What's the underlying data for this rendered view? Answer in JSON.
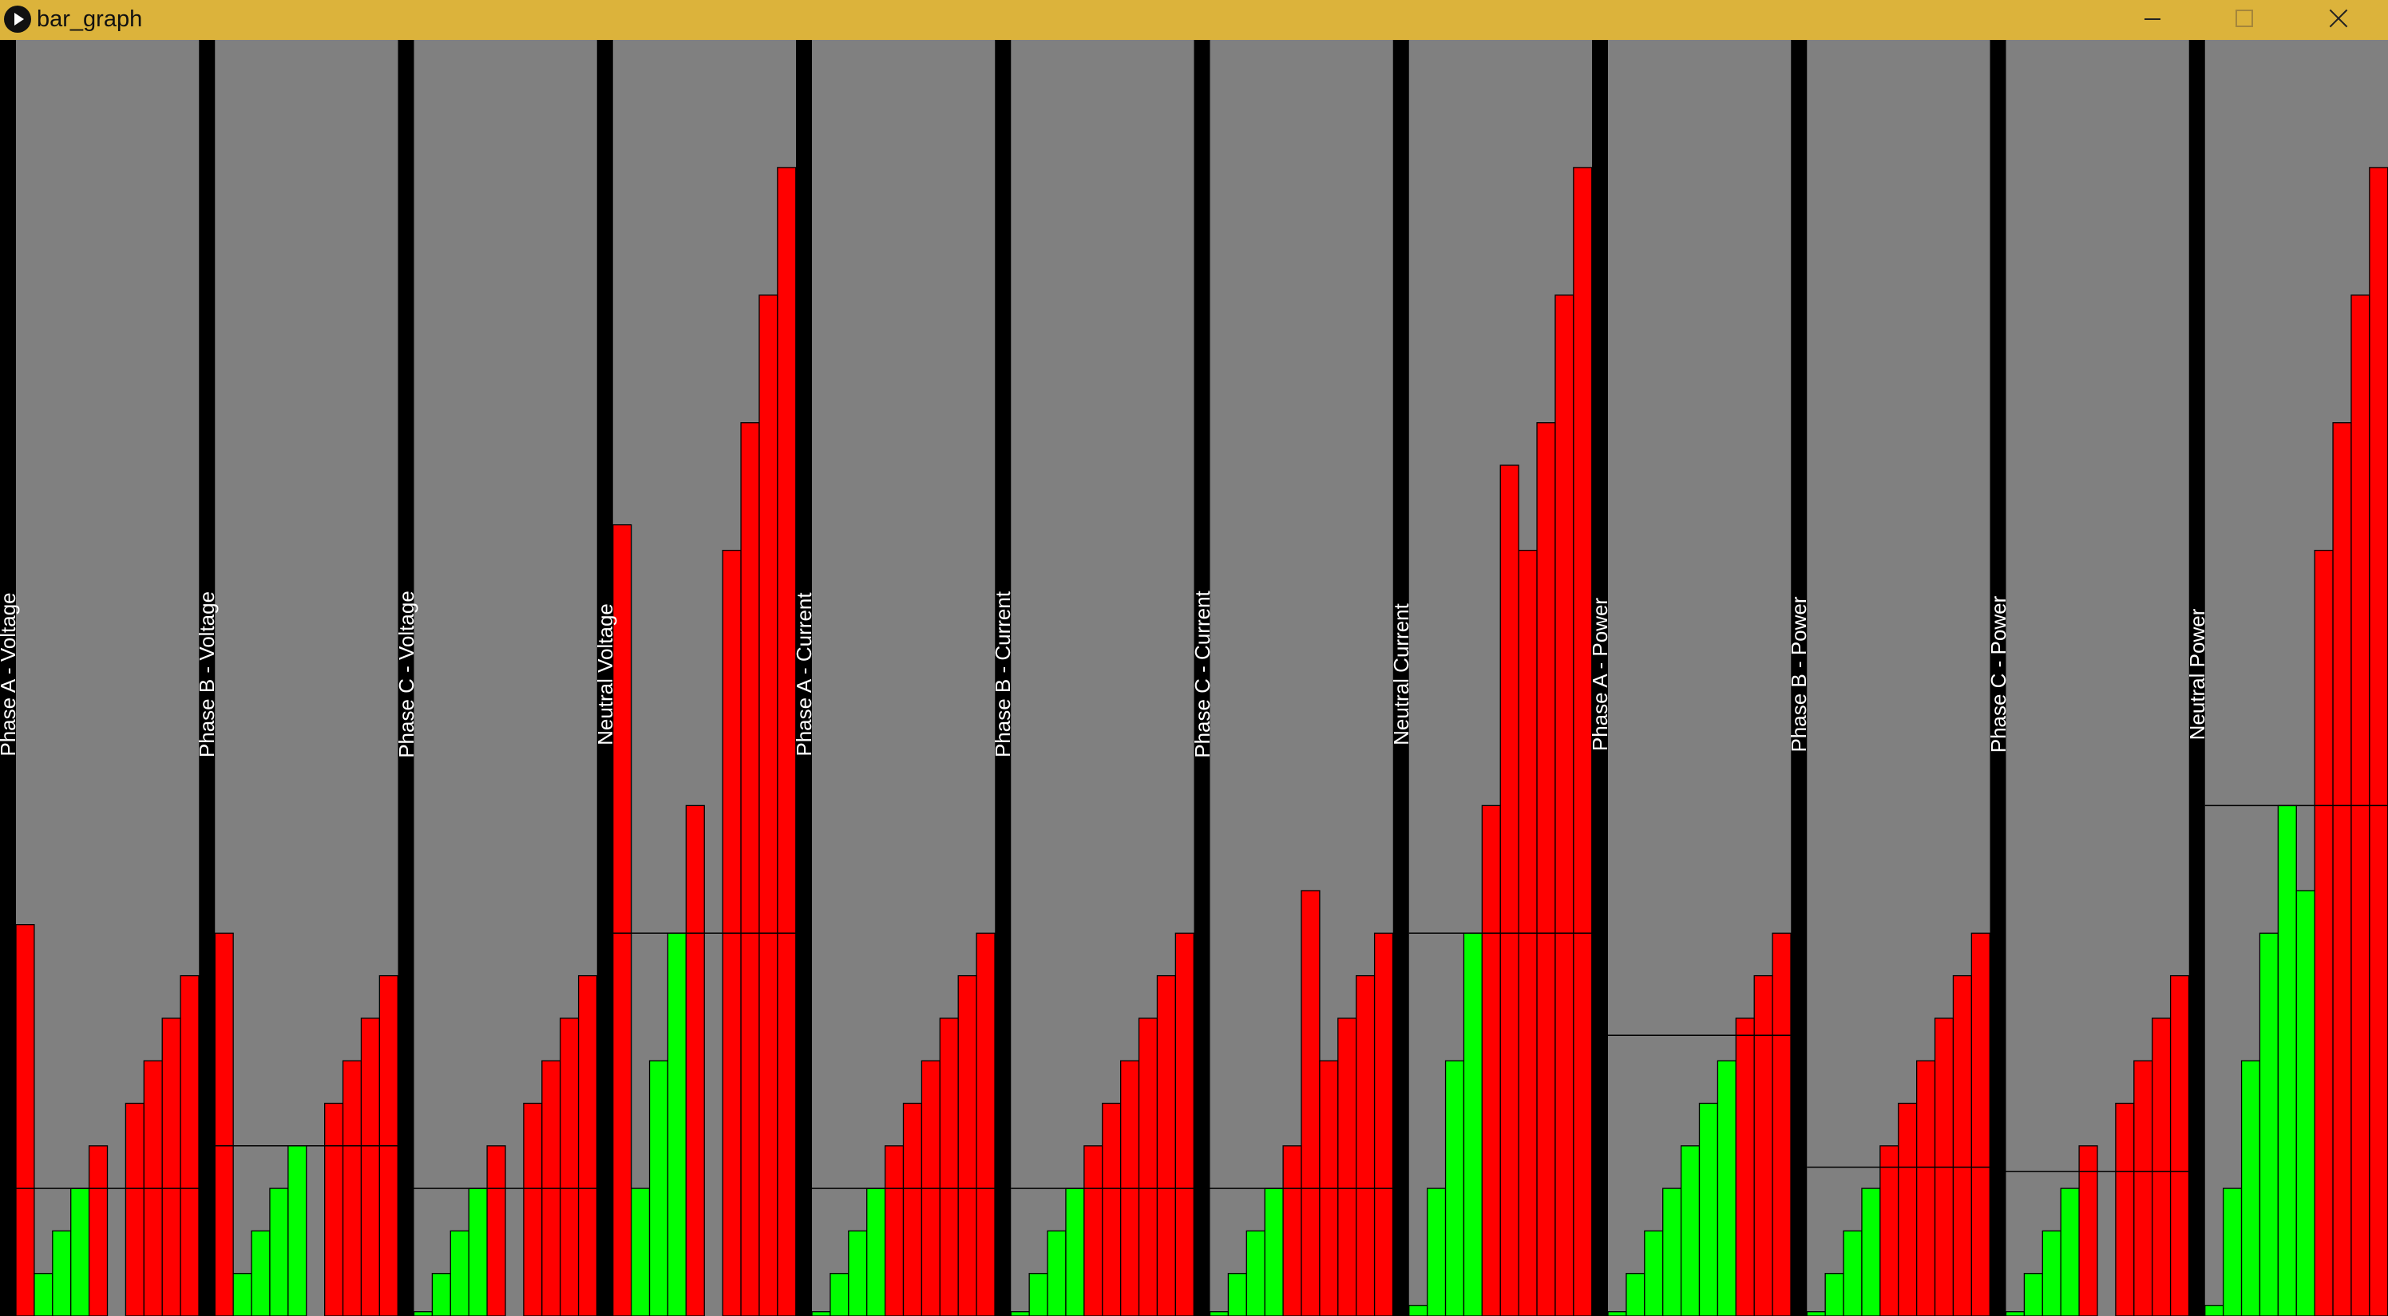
{
  "window": {
    "title": "bar_graph",
    "controls": [
      "minimize",
      "maximize",
      "close"
    ],
    "icon": "play-icon"
  },
  "colors": {
    "background": "#808080",
    "separator": "#000000",
    "bar_low": "#00ff00",
    "bar_high": "#ff0000",
    "threshold_line": "#000000",
    "titlebar": "#dcb33b"
  },
  "chart_data": [
    {
      "type": "bar",
      "title": "Phase A - Voltage",
      "ylim": [
        0,
        30
      ],
      "threshold": 3,
      "values": [
        9.2,
        1,
        2,
        3,
        4,
        0,
        5,
        6,
        7,
        8
      ]
    },
    {
      "type": "bar",
      "title": "Phase B - Voltage",
      "ylim": [
        0,
        30
      ],
      "threshold": 4,
      "values": [
        9,
        1,
        2,
        3,
        4,
        0,
        5,
        6,
        7,
        8
      ]
    },
    {
      "type": "bar",
      "title": "Phase C - Voltage",
      "ylim": [
        0,
        30
      ],
      "threshold": 3,
      "values": [
        0.1,
        1,
        2,
        3,
        4,
        0,
        5,
        6,
        7,
        8
      ]
    },
    {
      "type": "bar",
      "title": "Neutral Voltage",
      "ylim": [
        0,
        30
      ],
      "threshold": 9,
      "values": [
        18.6,
        3,
        6,
        9,
        12,
        0,
        18,
        21,
        24,
        27
      ]
    },
    {
      "type": "bar",
      "title": "Phase A - Current",
      "ylim": [
        0,
        30
      ],
      "threshold": 3,
      "values": [
        0.1,
        1,
        2,
        3,
        4,
        5,
        6,
        7,
        8,
        9
      ]
    },
    {
      "type": "bar",
      "title": "Phase B - Current",
      "ylim": [
        0,
        30
      ],
      "threshold": 3,
      "values": [
        0.1,
        1,
        2,
        3,
        4,
        5,
        6,
        7,
        8,
        9
      ]
    },
    {
      "type": "bar",
      "title": "Phase C - Current",
      "ylim": [
        0,
        30
      ],
      "threshold": 3,
      "values": [
        0.1,
        1,
        2,
        3,
        4,
        10,
        6,
        7,
        8,
        9
      ]
    },
    {
      "type": "bar",
      "title": "Neutral Current",
      "ylim": [
        0,
        30
      ],
      "threshold": 9,
      "values": [
        0.25,
        3,
        6,
        9,
        12,
        20,
        18,
        21,
        24,
        27
      ]
    },
    {
      "type": "bar",
      "title": "Phase A - Power",
      "ylim": [
        0,
        30
      ],
      "threshold": 6.6,
      "values": [
        0.1,
        1,
        2,
        3,
        4,
        5,
        6,
        7,
        8,
        9
      ]
    },
    {
      "type": "bar",
      "title": "Phase B - Power",
      "ylim": [
        0,
        30
      ],
      "threshold": 3.5,
      "values": [
        0.1,
        1,
        2,
        3,
        4,
        5,
        6,
        7,
        8,
        9
      ]
    },
    {
      "type": "bar",
      "title": "Phase C - Power",
      "ylim": [
        0,
        30
      ],
      "threshold": 3.4,
      "values": [
        0.1,
        1,
        2,
        3,
        4,
        0,
        5,
        6,
        7,
        8
      ]
    },
    {
      "type": "bar",
      "title": "Neutral Power",
      "ylim": [
        0,
        30
      ],
      "threshold": 12,
      "values": [
        0.25,
        3,
        6,
        9,
        12,
        10,
        18,
        21,
        24,
        27
      ]
    }
  ]
}
